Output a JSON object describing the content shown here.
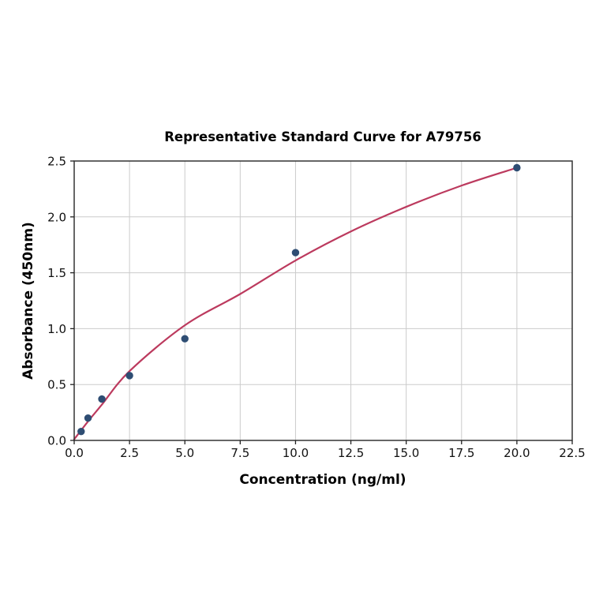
{
  "chart_data": {
    "type": "scatter",
    "title": "Representative Standard Curve for A79756",
    "xlabel": "Concentration (ng/ml)",
    "ylabel": "Absorbance (450nm)",
    "xlim": [
      0,
      22.5
    ],
    "ylim": [
      0,
      2.5
    ],
    "xticks": [
      0,
      2.5,
      5,
      7.5,
      10,
      12.5,
      15,
      17.5,
      20,
      22.5
    ],
    "xtick_labels": [
      "0.0",
      "2.5",
      "5.0",
      "7.5",
      "10.0",
      "12.5",
      "15.0",
      "17.5",
      "20.0",
      "22.5"
    ],
    "yticks": [
      0,
      0.5,
      1,
      1.5,
      2,
      2.5
    ],
    "ytick_labels": [
      "0.0",
      "0.5",
      "1.0",
      "1.5",
      "2.0",
      "2.5"
    ],
    "grid": true,
    "legend": false,
    "series": [
      {
        "name": "standard-points",
        "type": "scatter",
        "x": [
          0.313,
          0.625,
          1.25,
          2.5,
          5,
          10,
          20
        ],
        "y": [
          0.08,
          0.2,
          0.37,
          0.58,
          0.91,
          1.68,
          2.44
        ],
        "color": "#2e4d73"
      },
      {
        "name": "fitted-curve",
        "type": "line",
        "x": [
          0,
          0.625,
          1.25,
          2.5,
          5,
          7.5,
          10,
          12.5,
          15,
          17.5,
          20
        ],
        "y": [
          0.01,
          0.17,
          0.32,
          0.62,
          1.03,
          1.31,
          1.61,
          1.87,
          2.09,
          2.28,
          2.44
        ],
        "color": "#bc3a5e"
      }
    ],
    "colors": {
      "background": "#ffffff",
      "grid": "#cbcbcb",
      "spine": "#333333",
      "tick": "#222222",
      "text": "#000000",
      "point": "#2e4d73",
      "curve": "#bc3a5e"
    }
  }
}
